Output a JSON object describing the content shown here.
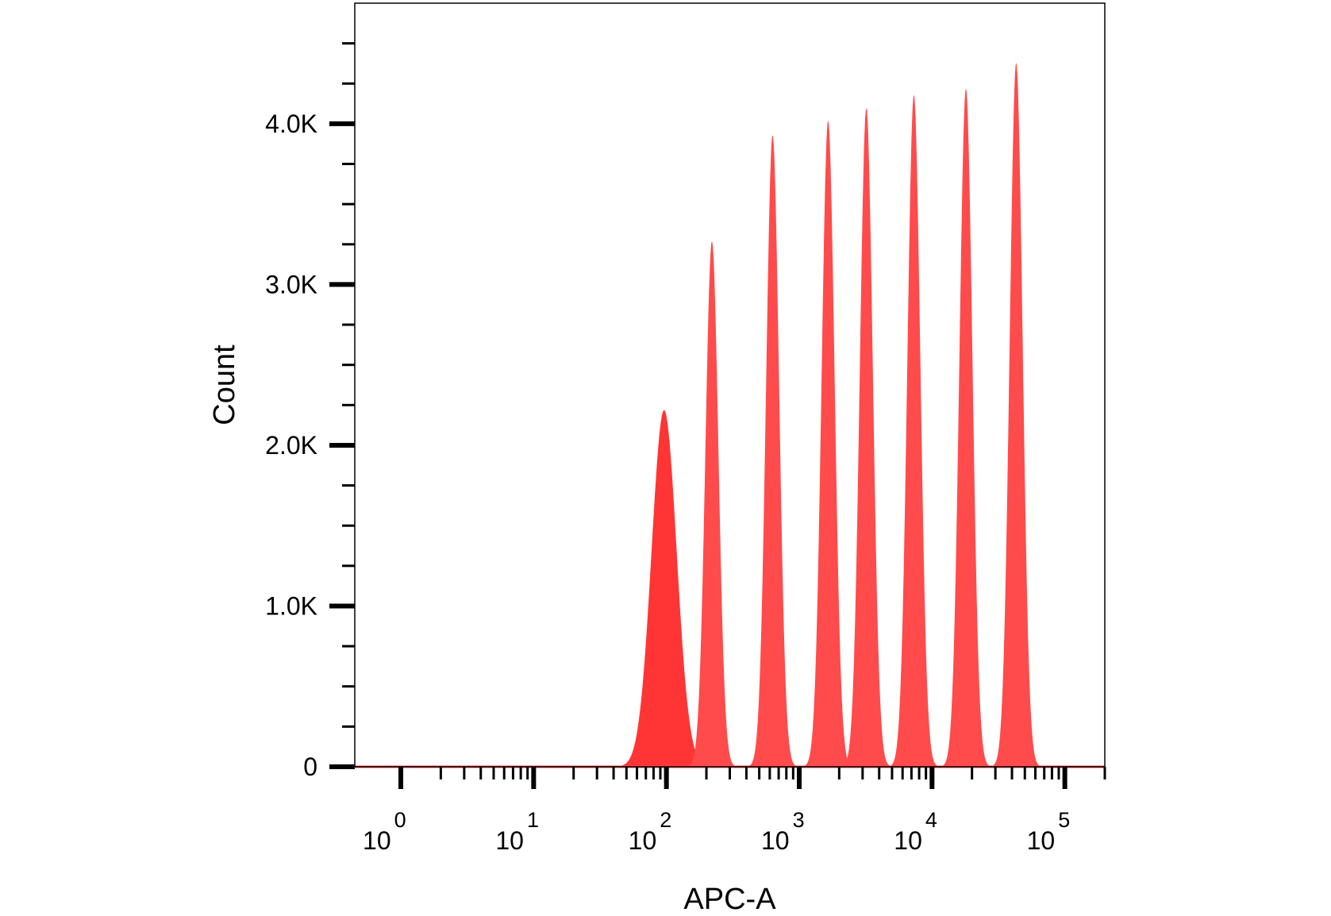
{
  "chart_data": {
    "type": "area",
    "xlabel": "APC-A",
    "ylabel": "Count",
    "x_scale": "log",
    "xlim": [
      0.45,
      200000
    ],
    "ylim": [
      0,
      4750
    ],
    "grid": false,
    "x_ticks": [
      {
        "base": "10",
        "exp": "0",
        "value": 1
      },
      {
        "base": "10",
        "exp": "1",
        "value": 10
      },
      {
        "base": "10",
        "exp": "2",
        "value": 100
      },
      {
        "base": "10",
        "exp": "3",
        "value": 1000
      },
      {
        "base": "10",
        "exp": "4",
        "value": 10000
      },
      {
        "base": "10",
        "exp": "5",
        "value": 100000
      }
    ],
    "y_ticks": [
      {
        "label": "0",
        "value": 0
      },
      {
        "label": "1.0K",
        "value": 1000
      },
      {
        "label": "2.0K",
        "value": 2000
      },
      {
        "label": "3.0K",
        "value": 3000
      },
      {
        "label": "4.0K",
        "value": 4000
      }
    ],
    "series": [
      {
        "fill_color": "#ff4b4b",
        "first_peak_color": "#ff3535",
        "peaks": [
          {
            "x": 96,
            "y": 2220
          },
          {
            "x": 220,
            "y": 3270
          },
          {
            "x": 630,
            "y": 3930
          },
          {
            "x": 1650,
            "y": 4020
          },
          {
            "x": 3200,
            "y": 4100
          },
          {
            "x": 7300,
            "y": 4180
          },
          {
            "x": 18000,
            "y": 4220
          },
          {
            "x": 43000,
            "y": 4380
          }
        ]
      }
    ]
  }
}
